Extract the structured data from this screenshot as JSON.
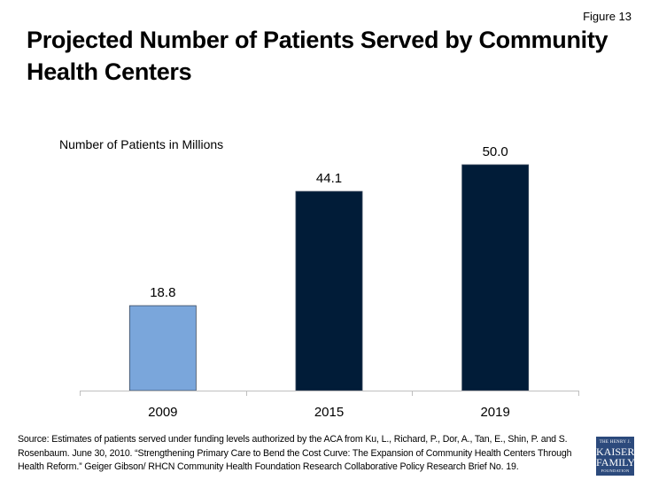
{
  "figure_label": "Figure 13",
  "title": "Projected Number of Patients Served by Community Health Centers",
  "source": "Source: Estimates of patients served under funding levels authorized by the ACA from Ku, L., Richard, P., Dor, A., Tan, E., Shin, P. and S. Rosenbaum. June 30, 2010. “Strengthening Primary Care to Bend the Cost Curve: The Expansion of Community Health Centers Through Health Reform.” Geiger Gibson/ RHCN Community Health Foundation Research Collaborative Policy Research Brief No. 19.",
  "logo": {
    "line1": "THE HENRY J.",
    "line2": "KAISER",
    "line3": "FAMILY",
    "line4": "FOUNDATION"
  },
  "chart_data": {
    "type": "bar",
    "title": "Projected Number of Patients Served by Community Health Centers",
    "xlabel": "",
    "ylabel": "Number of Patients in Millions",
    "categories": [
      "2009",
      "2015",
      "2019"
    ],
    "values": [
      18.8,
      44.1,
      50.0
    ],
    "data_labels": [
      "18.8",
      "44.1",
      "50.0"
    ],
    "bar_colors": [
      "#7aa6db",
      "#011c38",
      "#011c38"
    ],
    "ylim": [
      0,
      50
    ],
    "grid": false,
    "legend": "none"
  }
}
